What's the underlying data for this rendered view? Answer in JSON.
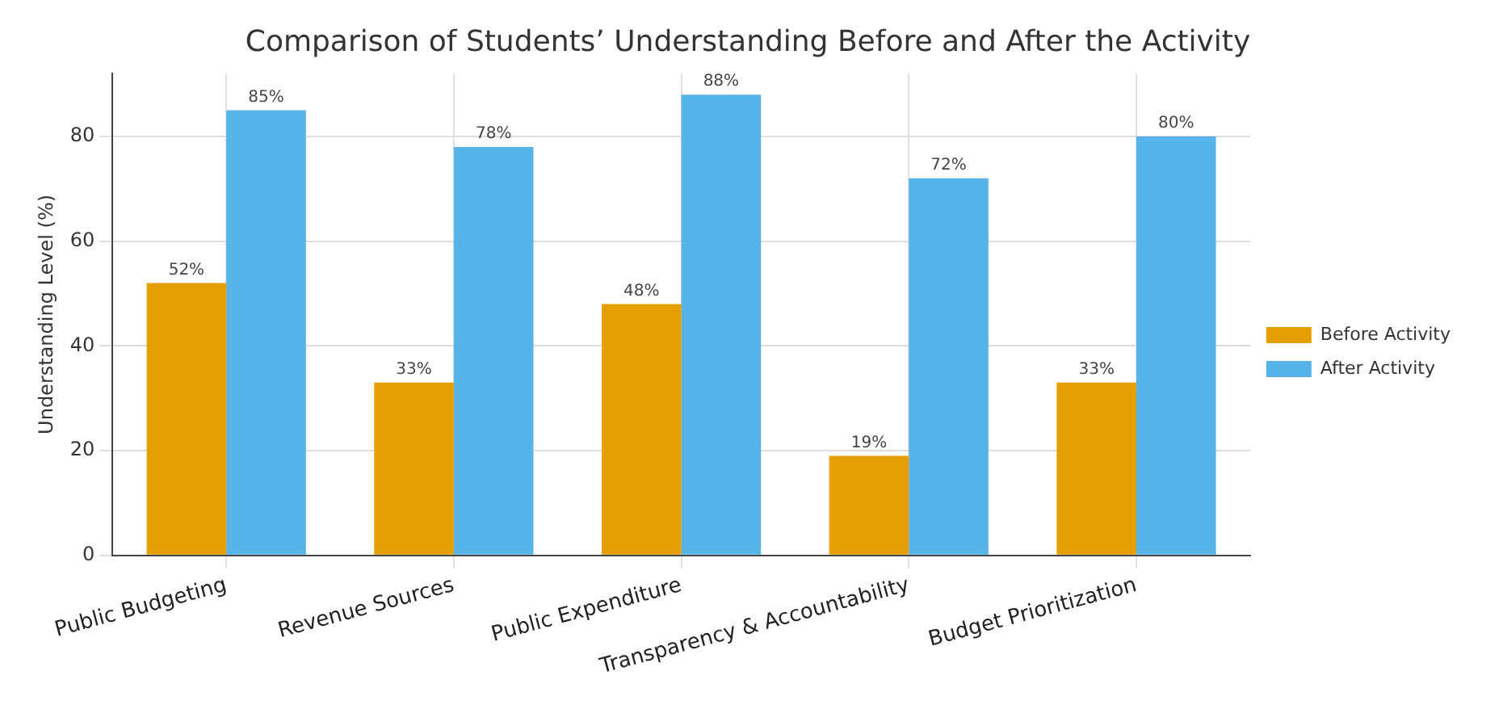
{
  "chart_data": {
    "type": "bar",
    "title": "Comparison of Students’ Understanding Before and After the Activity",
    "ylabel": "Understanding Level (%)",
    "categories": [
      "Public Budgeting",
      "Revenue Sources",
      "Public Expenditure",
      "Transparency & Accountability",
      "Budget Prioritization"
    ],
    "series": [
      {
        "name": "Before Activity",
        "color": "#e69f00",
        "values": [
          52,
          33,
          48,
          19,
          33
        ],
        "value_labels": [
          "52%",
          "33%",
          "48%",
          "19%",
          "33%"
        ]
      },
      {
        "name": "After Activity",
        "color": "#56b4e9",
        "values": [
          85,
          78,
          88,
          72,
          80
        ],
        "value_labels": [
          "85%",
          "78%",
          "88%",
          "72%",
          "80%"
        ]
      }
    ],
    "ylim": [
      0,
      92
    ],
    "yticks": [
      0,
      20,
      40,
      60,
      80
    ],
    "grid": true,
    "legend": "right"
  }
}
